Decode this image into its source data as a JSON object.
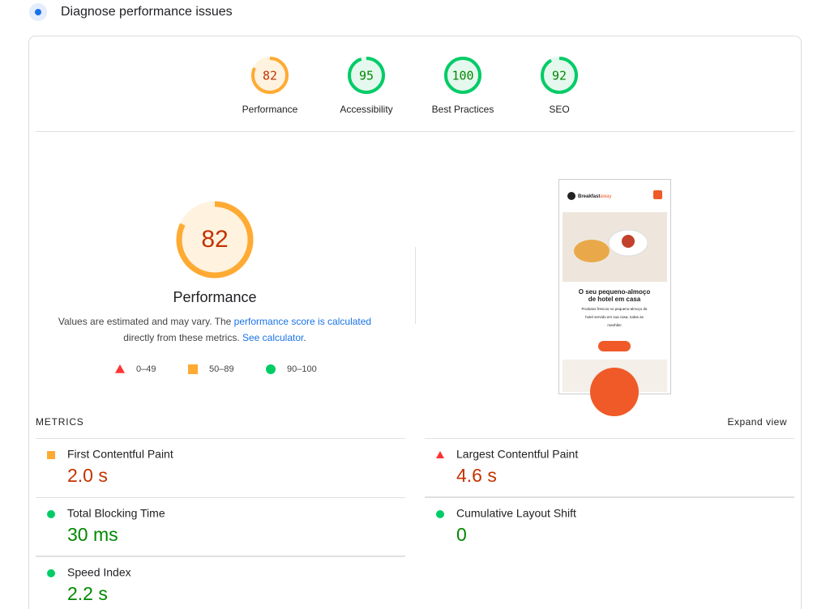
{
  "header": {
    "title": "Diagnose performance issues"
  },
  "categories": [
    {
      "label": "Performance",
      "value": 82,
      "color": "#fa3",
      "text_color": "#c33300"
    },
    {
      "label": "Accessibility",
      "value": 95,
      "color": "#0c6",
      "text_color": "#008800"
    },
    {
      "label": "Best Practices",
      "value": 100,
      "color": "#0c6",
      "text_color": "#008800"
    },
    {
      "label": "SEO",
      "value": 92,
      "color": "#0c6",
      "text_color": "#008800"
    }
  ],
  "performance": {
    "value": 82,
    "label": "Performance",
    "color": "#fa3",
    "text_color": "#c33300",
    "description": [
      {
        "text": "Values are estimated and may vary. The "
      },
      {
        "text": "performance score is calculated",
        "link": true
      },
      {
        "text": "directly from these metrics. ",
        "newline": true
      },
      {
        "text": "See calculator",
        "link": true
      },
      {
        "text": "."
      }
    ],
    "legend": [
      {
        "label": "0–49",
        "icon": "triangle",
        "color": "#f33"
      },
      {
        "label": "50–89",
        "icon": "square",
        "color": "#fa3"
      },
      {
        "label": "90–100",
        "icon": "circle",
        "color": "#0c6"
      }
    ]
  },
  "thumbnail": {
    "brand": [
      "Breakfast",
      "away"
    ],
    "headline": [
      "O seu pequeno-almoço",
      "de hotel em casa"
    ],
    "body": [
      "Produtos frescos no pequeno-almoço de",
      "hotel servido em sua casa, todas as",
      "manhãs!"
    ]
  },
  "metrics": {
    "title": "METRICS",
    "expand": "Expand view",
    "items": [
      {
        "name": "First Contentful Paint",
        "value": "2.0 s",
        "icon": "square",
        "color": "#fa3",
        "text_color": "#c33300"
      },
      {
        "name": "Largest Contentful Paint",
        "value": "4.6 s",
        "icon": "triangle",
        "color": "#f33",
        "text_color": "#c33300"
      },
      {
        "name": "Total Blocking Time",
        "value": "30 ms",
        "icon": "circle",
        "color": "#0c6",
        "text_color": "#008800"
      },
      {
        "name": "Cumulative Layout Shift",
        "value": "0",
        "icon": "circle",
        "color": "#0c6",
        "text_color": "#008800"
      },
      {
        "name": "Speed Index",
        "value": "2.2 s",
        "icon": "circle",
        "color": "#0c6",
        "text_color": "#008800"
      }
    ]
  }
}
